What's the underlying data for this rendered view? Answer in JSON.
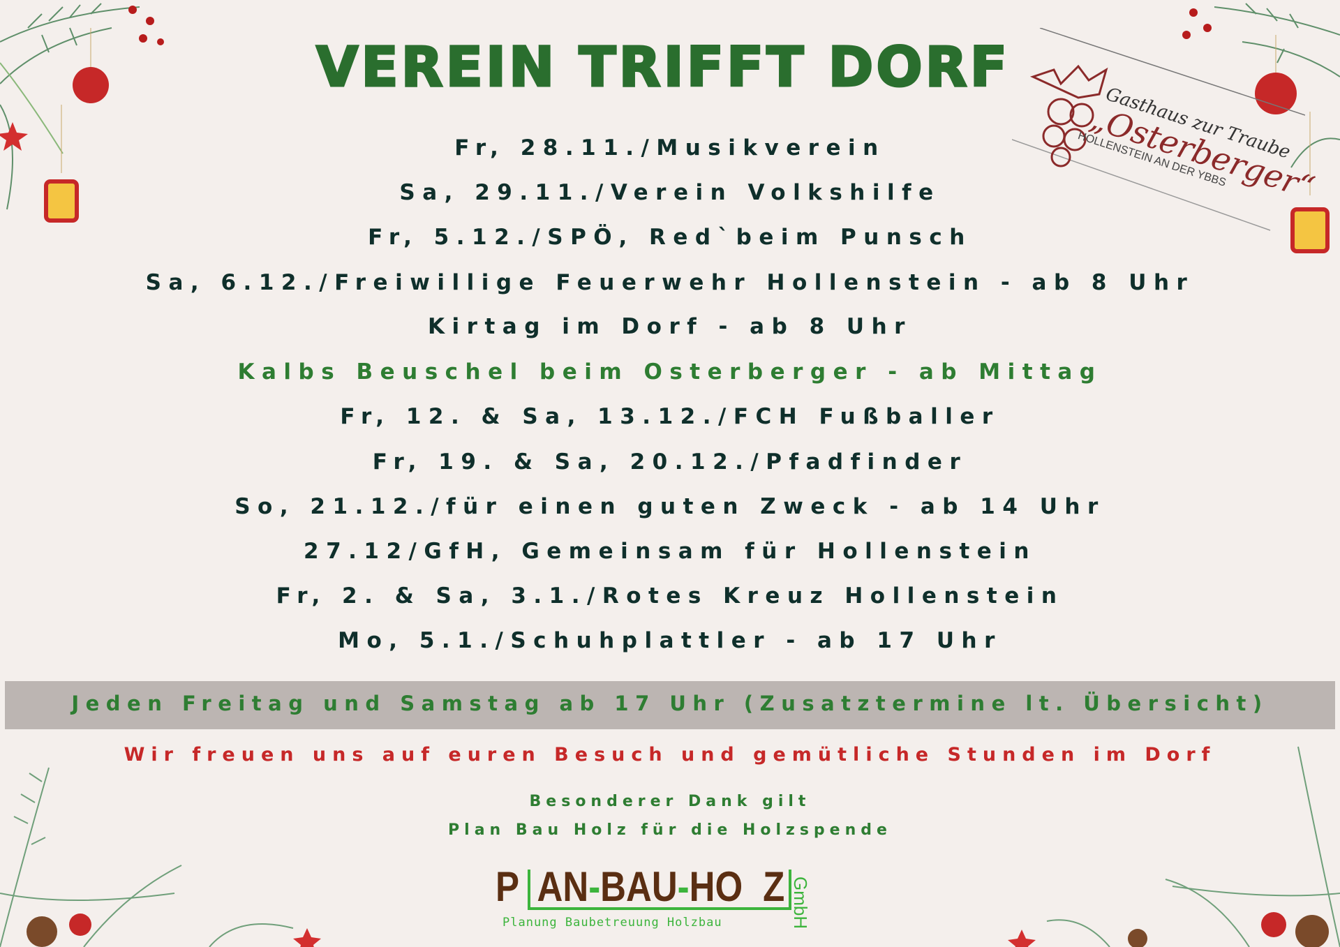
{
  "title": "Verein trifft Dorf",
  "schedule": [
    "Fr, 28.11./Musikverein",
    "Sa, 29.11./Verein Volkshilfe",
    "Fr, 5.12./SPÖ, Red`beim Punsch",
    "Sa, 6.12./Freiwillige Feuerwehr Hollenstein - ab 8 Uhr",
    "Kirtag im Dorf - ab 8 Uhr",
    "Kalbs Beuschel beim Osterberger - ab Mittag",
    "Fr, 12. & Sa, 13.12./FCH Fußballer",
    "Fr, 19. & Sa, 20.12./Pfadfinder",
    "So, 21.12./für einen guten Zweck - ab 14 Uhr",
    "27.12/GfH, Gemeinsam für Hollenstein",
    "Fr, 2. & Sa, 3.1./Rotes Kreuz Hollenstein",
    "Mo, 5.1./Schuhplattler - ab 17 Uhr"
  ],
  "banner": "Jeden Freitag und Samstag ab 17 Uhr (Zusatztermine lt. Übersicht)",
  "closing": "Wir freuen uns auf euren Besuch und gemütliche Stunden im Dorf",
  "thanks": [
    "Besonderer Dank gilt",
    "Plan Bau Holz für die Holzspende"
  ],
  "sponsor_logo": {
    "parts": [
      "P",
      "AN",
      "-",
      "BAU",
      "-",
      "HO",
      "Z"
    ],
    "suffix": "GmbH",
    "tagline": "Planung Baubetreuung Holzbau"
  },
  "restaurant_logo": {
    "line1": "Gasthaus zur Traube",
    "name": "„Osterberger“",
    "location": "HOLLENSTEIN AN DER YBBS"
  },
  "colors": {
    "text": "#0f2f2b",
    "green": "#2e7d32",
    "red": "#c62828",
    "banner": "#bcb5b2",
    "background": "#f4efec"
  }
}
